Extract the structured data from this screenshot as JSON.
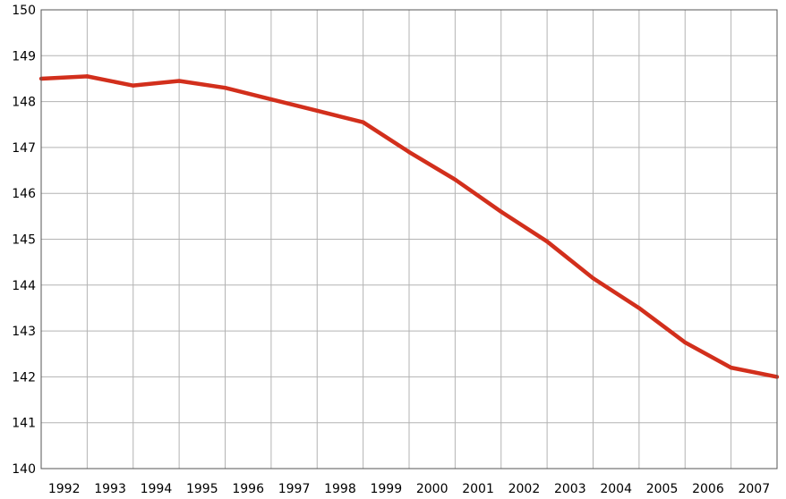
{
  "chart_data": {
    "type": "line",
    "x_tick_labels": [
      "1992",
      "1993",
      "1994",
      "1995",
      "1996",
      "1997",
      "1998",
      "1999",
      "2000",
      "2001",
      "2002",
      "2003",
      "2004",
      "2005",
      "2006",
      "2007"
    ],
    "x": [
      1991.5,
      1992.5,
      1993.5,
      1994.5,
      1995.5,
      1996.5,
      1997.5,
      1998.5,
      1999.5,
      2000.5,
      2001.5,
      2002.5,
      2003.5,
      2004.5,
      2005.5,
      2006.5,
      2007.5
    ],
    "series": [
      {
        "values": [
          148.5,
          148.55,
          148.35,
          148.45,
          148.3,
          148.05,
          147.8,
          147.55,
          146.9,
          146.3,
          145.6,
          144.95,
          144.15,
          143.5,
          142.75,
          142.2,
          142.0
        ],
        "color": "#d22f1c"
      }
    ],
    "y_tick_labels": [
      "140",
      "141",
      "142",
      "143",
      "144",
      "145",
      "146",
      "147",
      "148",
      "149",
      "150"
    ],
    "xlim": [
      1991.5,
      2007.5
    ],
    "ylim": [
      140,
      150
    ],
    "grid": true,
    "legend": "none"
  }
}
